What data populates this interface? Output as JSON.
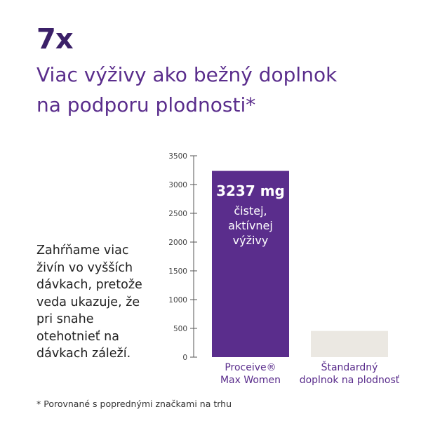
{
  "headline": {
    "multiplier": "7x",
    "line1": "Viac výživy ako bežný doplnok",
    "line2": "na podporu plodnosti*"
  },
  "side_text": {
    "lines": [
      "Zahŕňame viac",
      "živín vo vyšších",
      "dávkach, pretože",
      "veda ukazuje, že",
      "pri snahe",
      "otehotnieť na",
      "dávkach záleží."
    ]
  },
  "footnote": "* Porovnané s poprednými značkami na trhu",
  "colors": {
    "primary": "#5a2d8c",
    "dark": "#3b2068",
    "comparison_bar": "#ebe8e2"
  },
  "chart_data": {
    "type": "bar",
    "categories": [
      {
        "lines": [
          "Proceive®",
          "Max Women"
        ]
      },
      {
        "lines": [
          "Štandardný",
          "doplnok na plodnosť"
        ]
      }
    ],
    "values": [
      3237,
      455
    ],
    "ylim": [
      0,
      3500
    ],
    "yticks": [
      0,
      500,
      1000,
      1500,
      2000,
      2500,
      3000,
      3500
    ],
    "grid": false,
    "bar_label": {
      "value": "3237 mg",
      "sub_lines": [
        "čistej,",
        "aktívnej",
        "výživy"
      ]
    }
  }
}
